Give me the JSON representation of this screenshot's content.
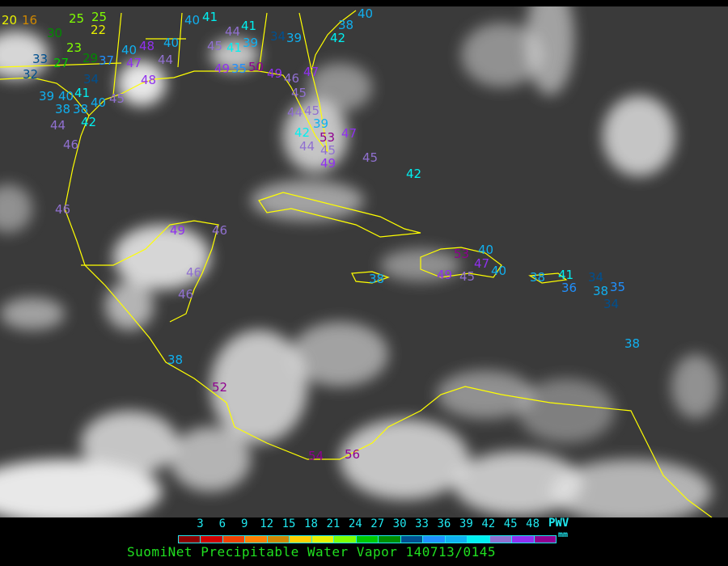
{
  "title": "SuomiNet Precipitable Water Vapor 140713/0145",
  "legend": {
    "unit_top": "PWV",
    "unit_bottom": "mm",
    "ticks": [
      "3",
      "6",
      "9",
      "12",
      "15",
      "18",
      "21",
      "24",
      "27",
      "30",
      "33",
      "36",
      "39",
      "42",
      "45",
      "48"
    ],
    "colors": [
      "#8b0000",
      "#d00000",
      "#f04000",
      "#ff8000",
      "#d08800",
      "#ffd000",
      "#e8f000",
      "#80ff00",
      "#00c800",
      "#008c00",
      "#005090",
      "#2090ff",
      "#10b0f0",
      "#00f0f0",
      "#9070d0",
      "#9030f0",
      "#900090"
    ]
  },
  "map": {
    "background": "#3a3a3a",
    "coastline_color": "#ffff00",
    "stations": [
      "20",
      "16",
      "25",
      "25",
      "30",
      "23",
      "22",
      "33",
      "27",
      "29",
      "37",
      "32",
      "34",
      "40",
      "48",
      "40",
      "44",
      "47",
      "48",
      "40",
      "41",
      "44",
      "41",
      "45",
      "41",
      "39",
      "49",
      "35",
      "50",
      "49",
      "46",
      "45",
      "47",
      "34",
      "39",
      "38",
      "42",
      "40",
      "39",
      "40",
      "41",
      "38",
      "38",
      "40",
      "44",
      "42",
      "45",
      "46",
      "44",
      "45",
      "39",
      "42",
      "53",
      "45",
      "47",
      "44",
      "49",
      "45",
      "42",
      "46",
      "49",
      "46",
      "46",
      "46",
      "38",
      "53",
      "40",
      "47",
      "49",
      "45",
      "40",
      "38",
      "41",
      "36",
      "34",
      "38",
      "35",
      "34",
      "38",
      "38",
      "52",
      "54",
      "56"
    ]
  }
}
